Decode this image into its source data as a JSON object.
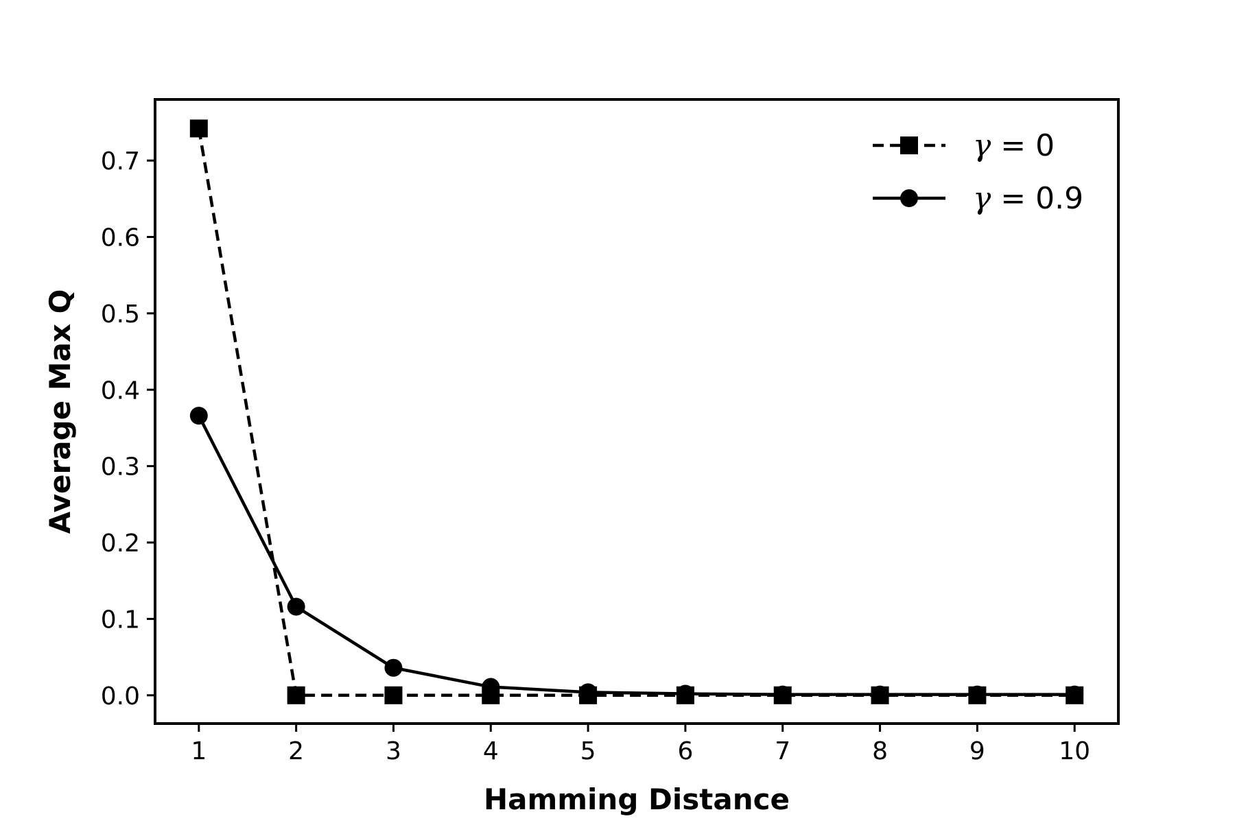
{
  "chart_data": {
    "type": "line",
    "x": [
      1,
      2,
      3,
      4,
      5,
      6,
      7,
      8,
      9,
      10
    ],
    "xlabel": "Hamming Distance",
    "ylabel": "Average Max Q",
    "xlim": [
      0.55,
      10.45
    ],
    "ylim": [
      -0.037,
      0.78
    ],
    "xticks": [
      "1",
      "2",
      "3",
      "4",
      "5",
      "6",
      "7",
      "8",
      "9",
      "10"
    ],
    "yticks": [
      "0.0",
      "0.1",
      "0.2",
      "0.3",
      "0.4",
      "0.5",
      "0.6",
      "0.7"
    ],
    "ytick_values": [
      0,
      0.1,
      0.2,
      0.3,
      0.4,
      0.5,
      0.6,
      0.7
    ],
    "grid": false,
    "legend_position": "top-right",
    "series": [
      {
        "name": "γ = 0",
        "symbol": "γ",
        "value_text": " = 0",
        "marker": "square",
        "line_style": "dashed",
        "color": "#000000",
        "values": [
          0.742,
          0.0,
          0.0,
          0.0,
          0.0,
          0.0,
          0.0,
          0.0,
          0.0,
          0.0
        ]
      },
      {
        "name": "γ = 0.9",
        "symbol": "γ",
        "value_text": " = 0.9",
        "marker": "circle",
        "line_style": "solid",
        "color": "#000000",
        "values": [
          0.366,
          0.116,
          0.036,
          0.011,
          0.004,
          0.002,
          0.001,
          0.001,
          0.001,
          0.001
        ]
      }
    ]
  }
}
